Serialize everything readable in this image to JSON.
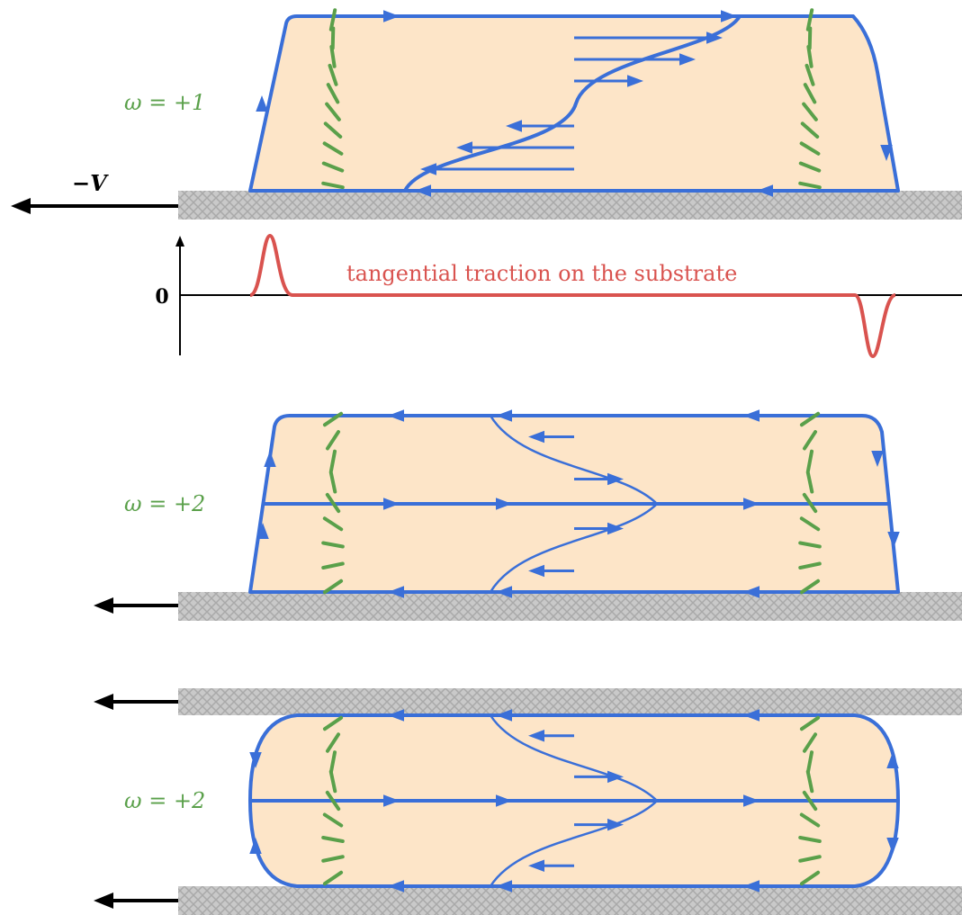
{
  "panels": [
    {
      "label": "ω = +1",
      "velocity_label": "−V"
    },
    {
      "label": "ω = +2"
    },
    {
      "label": "ω = +2"
    }
  ],
  "traction": {
    "zero_label": "0",
    "caption": "tangential traction on the substrate"
  }
}
